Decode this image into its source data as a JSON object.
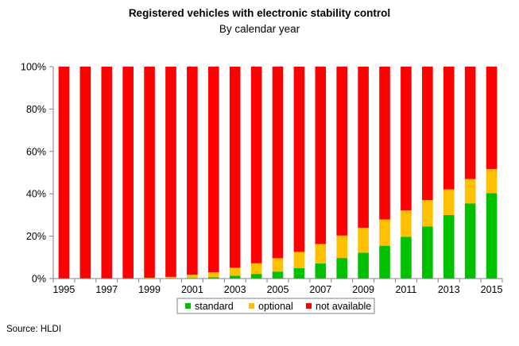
{
  "chart_data": {
    "type": "bar",
    "stacked": true,
    "title": "Registered vehicles with electronic stability control",
    "subtitle": "By calendar year",
    "categories": [
      "1995",
      "1996",
      "1997",
      "1998",
      "1999",
      "2000",
      "2001",
      "2002",
      "2003",
      "2004",
      "2005",
      "2006",
      "2007",
      "2008",
      "2009",
      "2010",
      "2011",
      "2012",
      "2013",
      "2014",
      "2015"
    ],
    "x_tick_labels": [
      "1995",
      "",
      "1997",
      "",
      "1999",
      "",
      "2001",
      "",
      "2003",
      "",
      "2005",
      "",
      "2007",
      "",
      "2009",
      "",
      "2011",
      "",
      "2013",
      "",
      "2015"
    ],
    "y_ticks": [
      "0%",
      "20%",
      "40%",
      "60%",
      "80%",
      "100%"
    ],
    "ylim": [
      0,
      100
    ],
    "series": [
      {
        "name": "standard",
        "color": "#00c000",
        "values": [
          0,
          0,
          0,
          0,
          0,
          0,
          0.3,
          0.6,
          1.3,
          2.2,
          3.3,
          4.9,
          7.1,
          9.7,
          12.2,
          15.5,
          19.7,
          24.6,
          30.0,
          35.4,
          40.3
        ]
      },
      {
        "name": "optional",
        "color": "#ffc000",
        "values": [
          0,
          0,
          0,
          0,
          0.4,
          0.8,
          1.5,
          2.4,
          3.8,
          5.0,
          6.3,
          7.7,
          9.2,
          10.6,
          11.8,
          12.4,
          12.5,
          12.4,
          12.1,
          11.6,
          11.4
        ]
      },
      {
        "name": "not available",
        "color": "#ff0000",
        "values": [
          100,
          100,
          100,
          100,
          99.6,
          99.2,
          98.2,
          97.0,
          94.9,
          92.8,
          90.4,
          87.4,
          83.7,
          79.7,
          76.0,
          72.1,
          67.8,
          63.0,
          57.9,
          53.0,
          48.3
        ]
      }
    ],
    "legend_position": "bottom",
    "grid": false
  },
  "source": "Source: HLDI"
}
